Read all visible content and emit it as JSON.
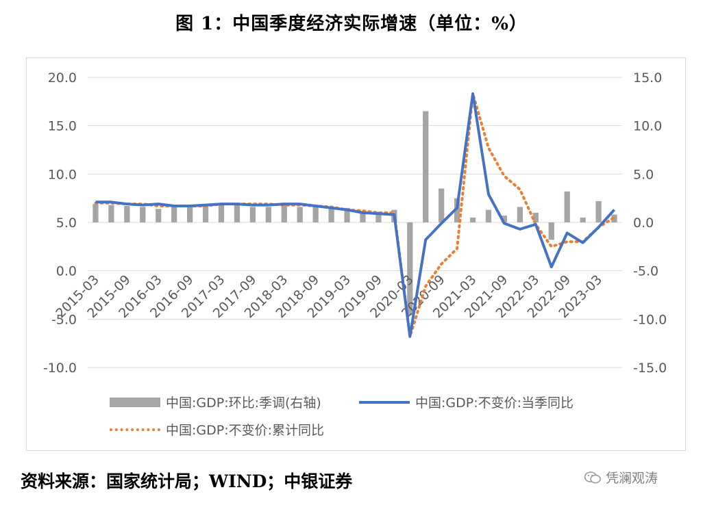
{
  "title": "图 1：中国季度经济实际增速（单位：%）",
  "source": "资料来源：国家统计局；WIND；中银证券",
  "watermark": "凭澜观涛",
  "colors": {
    "bars": "#a5a5a5",
    "quarterly": "#4472c4",
    "cumulative": "#ed7d31",
    "grid": "#d9d9d9",
    "tick": "#595959"
  },
  "chart_data": {
    "type": "bar+line",
    "title": "",
    "x": [
      "2015-03",
      "2015-06",
      "2015-09",
      "2015-12",
      "2016-03",
      "2016-06",
      "2016-09",
      "2016-12",
      "2017-03",
      "2017-06",
      "2017-09",
      "2017-12",
      "2018-03",
      "2018-06",
      "2018-09",
      "2018-12",
      "2019-03",
      "2019-06",
      "2019-09",
      "2019-12",
      "2020-03",
      "2020-06",
      "2020-09",
      "2020-12",
      "2021-03",
      "2021-06",
      "2021-09",
      "2021-12",
      "2022-03",
      "2022-06",
      "2022-09",
      "2022-12",
      "2023-03",
      "2023-06"
    ],
    "x_tick_labels": [
      "2015-03",
      "2015-09",
      "2016-03",
      "2016-09",
      "2017-03",
      "2017-09",
      "2018-03",
      "2018-09",
      "2019-03",
      "2019-09",
      "2020-03",
      "2020-09",
      "2021-03",
      "2021-09",
      "2022-03",
      "2022-09",
      "2023-03"
    ],
    "left_axis": {
      "ylim": [
        -10,
        20
      ],
      "ticks": [
        "20.0",
        "15.0",
        "10.0",
        "5.0",
        "0.0",
        "-5.0",
        "-10.0"
      ]
    },
    "right_axis": {
      "ylim": [
        -15,
        15
      ],
      "ticks": [
        "15.0",
        "10.0",
        "5.0",
        "0.0",
        "-5.0",
        "-10.0",
        "-15.0"
      ]
    },
    "series": [
      {
        "name": "中国:GDP:环比:季调(右轴)",
        "type": "bar",
        "axis": "right",
        "values": [
          1.9,
          1.8,
          1.7,
          1.6,
          1.4,
          1.8,
          1.7,
          1.7,
          1.8,
          1.8,
          1.6,
          1.6,
          1.8,
          1.6,
          1.6,
          1.5,
          1.5,
          1.1,
          1.1,
          1.3,
          -9.6,
          11.5,
          3.5,
          2.5,
          0.5,
          1.3,
          0.7,
          1.6,
          1.0,
          -1.8,
          3.2,
          0.5,
          2.2,
          0.8
        ]
      },
      {
        "name": "中国:GDP:不变价:当季同比",
        "type": "line",
        "axis": "left",
        "values": [
          7.1,
          7.1,
          6.9,
          6.8,
          6.9,
          6.7,
          6.7,
          6.8,
          6.9,
          6.9,
          6.8,
          6.8,
          6.9,
          6.9,
          6.7,
          6.5,
          6.3,
          6.0,
          5.9,
          5.8,
          -6.8,
          3.2,
          4.9,
          6.5,
          18.3,
          7.9,
          4.9,
          4.3,
          4.8,
          0.4,
          3.9,
          2.9,
          4.5,
          6.3
        ]
      },
      {
        "name": "中国:GDP:不变价:累计同比",
        "type": "line",
        "style": "dotted",
        "axis": "left",
        "values": [
          7.0,
          7.0,
          6.9,
          6.9,
          6.7,
          6.7,
          6.7,
          6.7,
          6.9,
          6.9,
          6.9,
          6.9,
          6.8,
          6.8,
          6.7,
          6.6,
          6.3,
          6.2,
          6.0,
          6.0,
          -6.8,
          -1.6,
          0.7,
          2.3,
          18.3,
          12.7,
          9.8,
          8.4,
          4.8,
          2.5,
          3.0,
          3.0,
          4.5,
          5.5
        ]
      }
    ],
    "legend": {
      "placement": "bottom"
    },
    "grid": true
  }
}
